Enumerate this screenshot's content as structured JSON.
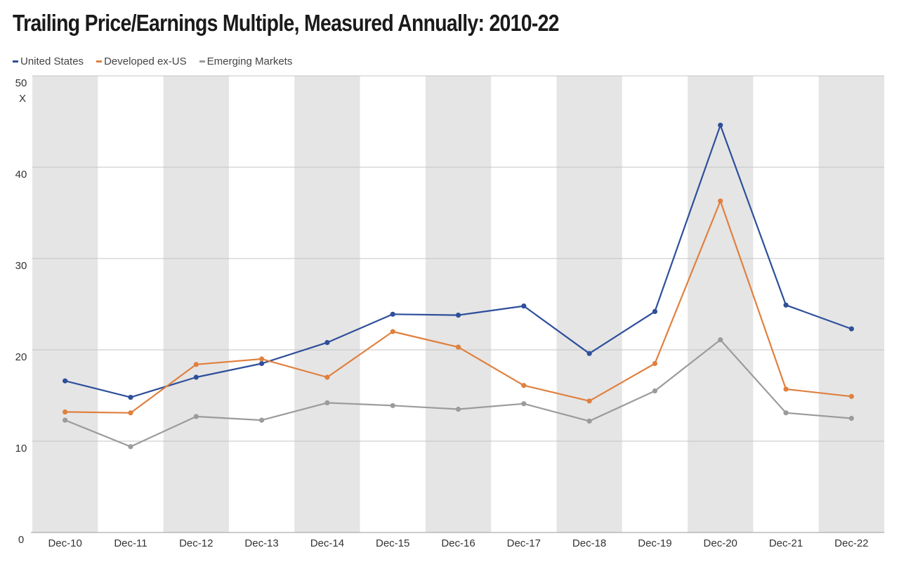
{
  "chart_data": {
    "type": "line",
    "title": "Trailing Price/Earnings Multiple, Measured Annually: 2010-22",
    "y_unit": "X",
    "categories": [
      "Dec-10",
      "Dec-11",
      "Dec-12",
      "Dec-13",
      "Dec-14",
      "Dec-15",
      "Dec-16",
      "Dec-17",
      "Dec-18",
      "Dec-19",
      "Dec-20",
      "Dec-21",
      "Dec-22"
    ],
    "ylim": [
      0,
      50
    ],
    "yticks": [
      0,
      10,
      20,
      30,
      40,
      50
    ],
    "grid": true,
    "legend_position": "top-left",
    "series": [
      {
        "name": "United States",
        "color": "#2e4f9a",
        "values": [
          16.6,
          14.8,
          17.0,
          18.5,
          20.8,
          23.9,
          23.8,
          24.8,
          19.6,
          24.2,
          44.6,
          24.9,
          22.3
        ]
      },
      {
        "name": "Developed ex-US",
        "color": "#e0803f",
        "values": [
          13.2,
          13.1,
          18.4,
          19.0,
          17.0,
          22.0,
          20.3,
          16.1,
          14.4,
          18.5,
          36.3,
          15.7,
          14.9
        ]
      },
      {
        "name": "Emerging Markets",
        "color": "#9b9b9b",
        "values": [
          12.3,
          9.4,
          12.7,
          12.3,
          14.2,
          13.9,
          13.5,
          14.1,
          12.2,
          15.5,
          21.1,
          13.1,
          12.5
        ]
      }
    ]
  }
}
